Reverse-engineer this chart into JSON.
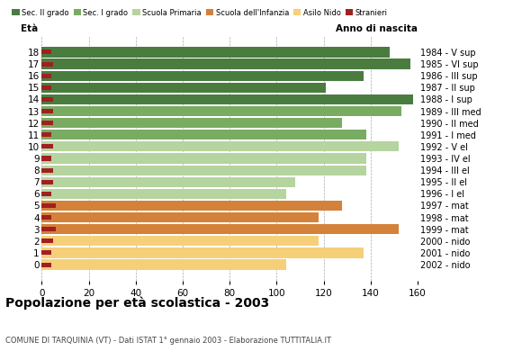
{
  "ages": [
    18,
    17,
    16,
    15,
    14,
    13,
    12,
    11,
    10,
    9,
    8,
    7,
    6,
    5,
    4,
    3,
    2,
    1,
    0
  ],
  "years": [
    "1984 - V sup",
    "1985 - VI sup",
    "1986 - III sup",
    "1987 - II sup",
    "1988 - I sup",
    "1989 - III med",
    "1990 - II med",
    "1991 - I med",
    "1992 - V el",
    "1993 - IV el",
    "1994 - III el",
    "1995 - II el",
    "1996 - I el",
    "1997 - mat",
    "1998 - mat",
    "1999 - mat",
    "2000 - nido",
    "2001 - nido",
    "2002 - nido"
  ],
  "values": [
    148,
    157,
    137,
    121,
    158,
    153,
    128,
    138,
    152,
    138,
    138,
    108,
    104,
    128,
    118,
    152,
    118,
    137,
    104
  ],
  "foreigners": [
    4,
    5,
    4,
    4,
    5,
    5,
    5,
    4,
    5,
    4,
    5,
    5,
    4,
    6,
    4,
    6,
    5,
    4,
    4
  ],
  "bar_colors": [
    "#4a7c40",
    "#4a7c40",
    "#4a7c40",
    "#4a7c40",
    "#4a7c40",
    "#7aab62",
    "#7aab62",
    "#7aab62",
    "#b5d4a0",
    "#b5d4a0",
    "#b5d4a0",
    "#b5d4a0",
    "#b5d4a0",
    "#d4813a",
    "#d4813a",
    "#d4813a",
    "#f5d078",
    "#f5d078",
    "#f5d078"
  ],
  "legend_labels": [
    "Sec. II grado",
    "Sec. I grado",
    "Scuola Primaria",
    "Scuola dell'Infanzia",
    "Asilo Nido",
    "Stranieri"
  ],
  "legend_colors": [
    "#4a7c40",
    "#7aab62",
    "#b5d4a0",
    "#d4813a",
    "#f5d078",
    "#a02020"
  ],
  "title": "Popolazione per età scolastica - 2003",
  "subtitle": "COMUNE DI TARQUINIA (VT) - Dati ISTAT 1° gennaio 2003 - Elaborazione TUTTITALIA.IT",
  "xlabel_eta": "Età",
  "xlabel_anno": "Anno di nascita",
  "xlim": [
    0,
    160
  ],
  "xticks": [
    0,
    20,
    40,
    60,
    80,
    100,
    120,
    140,
    160
  ],
  "stranieri_color": "#a02020",
  "bg_color": "#ffffff",
  "bar_height": 0.85
}
